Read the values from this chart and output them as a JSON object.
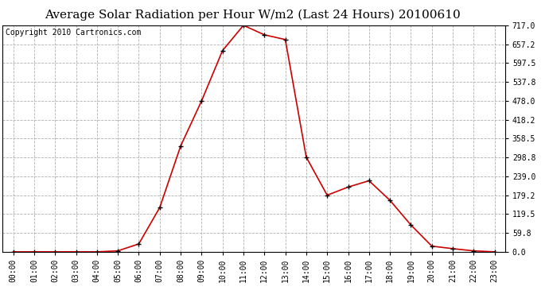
{
  "title": "Average Solar Radiation per Hour W/m2 (Last 24 Hours) 20100610",
  "copyright": "Copyright 2010 Cartronics.com",
  "x_labels": [
    "00:00",
    "01:00",
    "02:00",
    "03:00",
    "04:00",
    "05:00",
    "06:00",
    "07:00",
    "08:00",
    "09:00",
    "10:00",
    "11:00",
    "12:00",
    "13:00",
    "14:00",
    "15:00",
    "16:00",
    "17:00",
    "18:00",
    "19:00",
    "20:00",
    "21:00",
    "22:00",
    "23:00"
  ],
  "y_values": [
    0.0,
    0.0,
    0.0,
    0.0,
    0.0,
    3.0,
    25.0,
    140.0,
    335.0,
    478.0,
    637.0,
    717.0,
    687.0,
    672.0,
    300.0,
    179.2,
    205.0,
    225.0,
    163.0,
    85.0,
    18.0,
    10.0,
    3.0,
    0.0
  ],
  "line_color": "#cc0000",
  "marker_color": "#000000",
  "background_color": "#ffffff",
  "grid_color": "#b0b0b0",
  "ylim": [
    0.0,
    717.0
  ],
  "yticks": [
    0.0,
    59.8,
    119.5,
    179.2,
    239.0,
    298.8,
    358.5,
    418.2,
    478.0,
    537.8,
    597.5,
    657.2,
    717.0
  ],
  "ytick_labels": [
    "0.0",
    "59.8",
    "119.5",
    "179.2",
    "239.0",
    "298.8",
    "358.5",
    "418.2",
    "478.0",
    "537.8",
    "597.5",
    "657.2",
    "717.0"
  ],
  "title_fontsize": 11,
  "copyright_fontsize": 7,
  "tick_fontsize": 7
}
